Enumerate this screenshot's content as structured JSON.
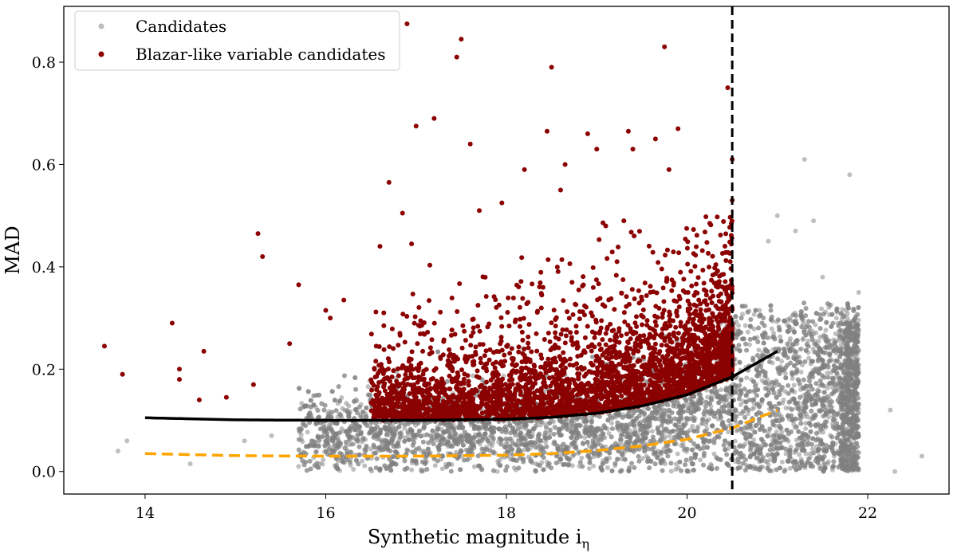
{
  "chart_data": {
    "type": "scatter",
    "title": "",
    "xlabel": "Synthetic magnitude i",
    "xlabel_subscript": "η",
    "ylabel": "MAD",
    "xlim": [
      13.1,
      22.9
    ],
    "ylim": [
      -0.044,
      0.909
    ],
    "xticks": [
      14,
      16,
      18,
      20,
      22
    ],
    "xtick_labels": [
      "14",
      "16",
      "18",
      "20",
      "22"
    ],
    "yticks": [
      0.0,
      0.2,
      0.4,
      0.6,
      0.8
    ],
    "ytick_labels": [
      "0.0",
      "0.2",
      "0.4",
      "0.6",
      "0.8"
    ],
    "grid": false,
    "legend_position": "top-left",
    "series": [
      {
        "name": "Candidates",
        "color": "#808080",
        "note_points": [
          [
            13.8,
            0.06
          ],
          [
            13.7,
            0.04
          ],
          [
            14.5,
            0.015
          ],
          [
            21.3,
            0.61
          ],
          [
            21.2,
            0.47
          ],
          [
            21.0,
            0.5
          ],
          [
            20.9,
            0.45
          ],
          [
            21.5,
            0.38
          ],
          [
            21.8,
            0.58
          ],
          [
            22.6,
            0.03
          ],
          [
            21.9,
            0.35
          ],
          [
            22.25,
            0.12
          ],
          [
            22.3,
            0.0
          ],
          [
            21.4,
            0.49
          ],
          [
            15.1,
            0.06
          ],
          [
            15.4,
            0.07
          ],
          [
            15.7,
            0.01
          ]
        ]
      },
      {
        "name": "Blazar-like variable candidates",
        "color": "#8b0000",
        "note_points": [
          [
            13.55,
            0.245
          ],
          [
            13.75,
            0.19
          ],
          [
            14.3,
            0.29
          ],
          [
            14.38,
            0.2
          ],
          [
            14.38,
            0.18
          ],
          [
            14.65,
            0.235
          ],
          [
            14.6,
            0.14
          ],
          [
            14.9,
            0.145
          ],
          [
            15.25,
            0.465
          ],
          [
            15.3,
            0.42
          ],
          [
            15.2,
            0.17
          ],
          [
            15.7,
            0.365
          ],
          [
            15.6,
            0.25
          ],
          [
            16.0,
            0.315
          ],
          [
            16.05,
            0.3
          ],
          [
            16.2,
            0.335
          ],
          [
            16.6,
            0.44
          ],
          [
            16.7,
            0.565
          ],
          [
            16.85,
            0.505
          ],
          [
            16.9,
            0.875
          ],
          [
            16.95,
            0.445
          ],
          [
            17.0,
            0.675
          ],
          [
            17.2,
            0.69
          ],
          [
            17.45,
            0.81
          ],
          [
            17.5,
            0.845
          ],
          [
            17.6,
            0.64
          ],
          [
            17.7,
            0.51
          ],
          [
            17.95,
            0.525
          ],
          [
            18.2,
            0.59
          ],
          [
            18.45,
            0.665
          ],
          [
            18.5,
            0.79
          ],
          [
            18.65,
            0.6
          ],
          [
            18.9,
            0.66
          ],
          [
            19.0,
            0.63
          ],
          [
            19.35,
            0.665
          ],
          [
            19.4,
            0.63
          ],
          [
            19.65,
            0.65
          ],
          [
            19.75,
            0.83
          ],
          [
            19.9,
            0.67
          ],
          [
            19.8,
            0.59
          ],
          [
            20.45,
            0.75
          ],
          [
            20.5,
            0.61
          ],
          [
            20.5,
            0.53
          ],
          [
            19.3,
            0.49
          ],
          [
            19.1,
            0.48
          ],
          [
            18.6,
            0.55
          ]
        ]
      }
    ],
    "lines": [
      {
        "style": "solid",
        "color": "#000000",
        "x": [
          14,
          15,
          16,
          17,
          18,
          18.5,
          19,
          19.5,
          20,
          20.5,
          21
        ],
        "y": [
          0.105,
          0.101,
          0.1,
          0.1,
          0.102,
          0.106,
          0.114,
          0.128,
          0.15,
          0.185,
          0.235
        ]
      },
      {
        "style": "dashed",
        "color": "#ffa500",
        "x": [
          14,
          15,
          16,
          17,
          18,
          18.5,
          19,
          19.5,
          20,
          20.5,
          21
        ],
        "y": [
          0.035,
          0.031,
          0.03,
          0.03,
          0.032,
          0.035,
          0.041,
          0.05,
          0.063,
          0.085,
          0.12
        ]
      },
      {
        "style": "dashed-vertical",
        "color": "#000000",
        "x": 20.5
      }
    ]
  }
}
